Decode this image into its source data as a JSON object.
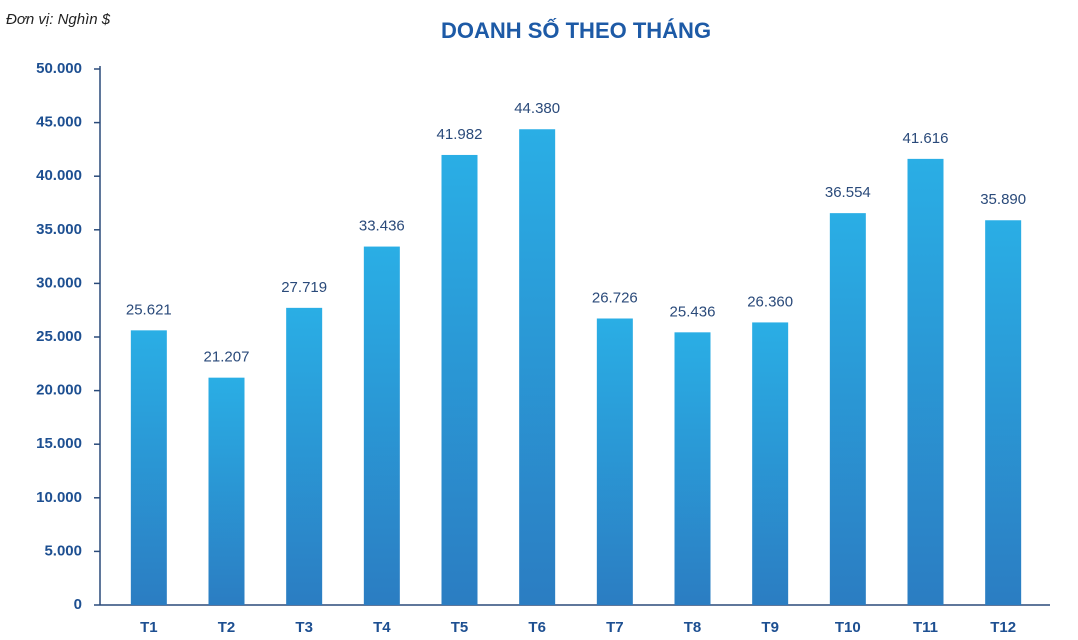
{
  "chart_data": {
    "type": "bar",
    "title": "DOANH SỐ THEO THÁNG",
    "subtitle": "Đơn vị: Nghìn $",
    "categories": [
      "T1",
      "T2",
      "T3",
      "T4",
      "T5",
      "T6",
      "T7",
      "T8",
      "T9",
      "T10",
      "T11",
      "T12"
    ],
    "values": [
      25621,
      21207,
      27719,
      33436,
      41982,
      44380,
      26726,
      25436,
      26360,
      36554,
      41616,
      35890
    ],
    "value_labels": [
      "25.621",
      "21.207",
      "27.719",
      "33.436",
      "41.982",
      "44.380",
      "26.726",
      "25.436",
      "26.360",
      "36.554",
      "41.616",
      "35.890"
    ],
    "gradient": [
      "#2AAEE5",
      "#2B7DC2"
    ],
    "ylim": [
      0,
      50000
    ],
    "yticks": [
      0,
      {
        "value": 5000,
        "label": "5.000"
      },
      {
        "value": 10000,
        "label": "10.000"
      },
      {
        "value": 15000,
        "label": "15.000"
      },
      {
        "value": 20000,
        "label": "20.000"
      },
      {
        "value": 25000,
        "label": "25.000"
      },
      {
        "value": 30000,
        "label": "30.000"
      },
      {
        "value": 35000,
        "label": "35.000"
      },
      {
        "value": 40000,
        "label": "40.000"
      },
      {
        "value": 45000,
        "label": "45.000"
      },
      {
        "value": 50000,
        "label": "50.000"
      }
    ],
    "grid": false
  }
}
